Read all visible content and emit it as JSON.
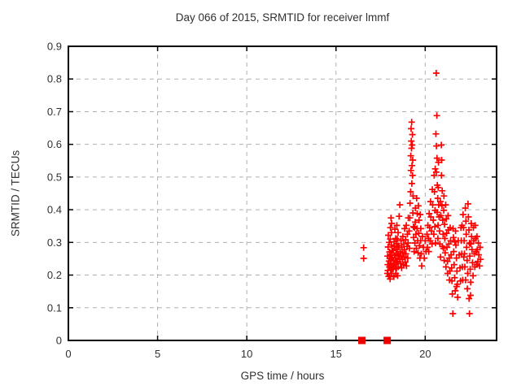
{
  "chart_data": {
    "type": "scatter",
    "title": "Day 066 of 2015, SRMTID for receiver lmmf",
    "xlabel": "GPS time / hours",
    "ylabel": "SRMTID / TECUs",
    "xlim": [
      0,
      24
    ],
    "ylim": [
      0,
      0.9
    ],
    "x_ticks": [
      0,
      5,
      10,
      15,
      20
    ],
    "x_tick_labels": [
      "0",
      "5",
      "10",
      "15",
      "20"
    ],
    "y_ticks": [
      0,
      0.1,
      0.2,
      0.3,
      0.4,
      0.5,
      0.6,
      0.7,
      0.8,
      0.9
    ],
    "y_tick_labels": [
      "0",
      "0.1",
      "0.2",
      "0.3",
      "0.4",
      "0.5",
      "0.6",
      "0.7",
      "0.8",
      "0.9"
    ],
    "grid": true,
    "legend": "none",
    "colors": {
      "marker": "#ff0000",
      "square_marker": "#ee0000",
      "grid": "#b0b0b0",
      "axis": "#000000",
      "text": "#303030",
      "background": "#ffffff"
    },
    "series": [
      {
        "name": "srmtid-values",
        "marker": "plus",
        "color": "#ff0000",
        "points": [
          [
            16.55,
            0.284
          ],
          [
            16.55,
            0.251
          ],
          [
            17.88,
            0.205
          ],
          [
            17.9,
            0.232
          ],
          [
            17.89,
            0.258
          ],
          [
            17.92,
            0.286
          ],
          [
            17.91,
            0.214
          ],
          [
            17.95,
            0.196
          ],
          [
            17.97,
            0.243
          ],
          [
            17.99,
            0.225
          ],
          [
            18.0,
            0.271
          ],
          [
            18.02,
            0.198
          ],
          [
            18.01,
            0.252
          ],
          [
            18.04,
            0.31
          ],
          [
            18.03,
            0.188
          ],
          [
            18.06,
            0.236
          ],
          [
            18.08,
            0.262
          ],
          [
            18.07,
            0.215
          ],
          [
            18.1,
            0.292
          ],
          [
            18.09,
            0.244
          ],
          [
            18.12,
            0.205
          ],
          [
            18.11,
            0.33
          ],
          [
            18.14,
            0.275
          ],
          [
            18.13,
            0.228
          ],
          [
            18.15,
            0.252
          ],
          [
            18.05,
            0.345
          ],
          [
            17.93,
            0.322
          ],
          [
            18.08,
            0.375
          ],
          [
            18.12,
            0.358
          ],
          [
            17.98,
            0.3
          ],
          [
            18.2,
            0.218
          ],
          [
            18.22,
            0.246
          ],
          [
            18.21,
            0.275
          ],
          [
            18.25,
            0.302
          ],
          [
            18.24,
            0.195
          ],
          [
            18.27,
            0.232
          ],
          [
            18.29,
            0.26
          ],
          [
            18.28,
            0.288
          ],
          [
            18.31,
            0.225
          ],
          [
            18.3,
            0.34
          ],
          [
            18.33,
            0.252
          ],
          [
            18.35,
            0.205
          ],
          [
            18.34,
            0.312
          ],
          [
            18.37,
            0.278
          ],
          [
            18.36,
            0.238
          ],
          [
            18.4,
            0.296
          ],
          [
            18.39,
            0.22
          ],
          [
            18.42,
            0.265
          ],
          [
            18.41,
            0.352
          ],
          [
            18.44,
            0.242
          ],
          [
            18.43,
            0.31
          ],
          [
            18.46,
            0.285
          ],
          [
            18.45,
            0.198
          ],
          [
            18.48,
            0.33
          ],
          [
            18.5,
            0.262
          ],
          [
            18.49,
            0.225
          ],
          [
            18.52,
            0.29
          ],
          [
            18.55,
            0.248
          ],
          [
            18.54,
            0.38
          ],
          [
            18.58,
            0.415
          ],
          [
            18.6,
            0.272
          ],
          [
            18.62,
            0.235
          ],
          [
            18.65,
            0.305
          ],
          [
            18.64,
            0.258
          ],
          [
            18.68,
            0.222
          ],
          [
            18.7,
            0.285
          ],
          [
            18.72,
            0.248
          ],
          [
            18.75,
            0.318
          ],
          [
            18.74,
            0.268
          ],
          [
            18.78,
            0.232
          ],
          [
            18.8,
            0.295
          ],
          [
            18.82,
            0.255
          ],
          [
            18.85,
            0.342
          ],
          [
            18.84,
            0.278
          ],
          [
            18.88,
            0.24
          ],
          [
            18.9,
            0.308
          ],
          [
            18.92,
            0.265
          ],
          [
            18.95,
            0.228
          ],
          [
            18.94,
            0.352
          ],
          [
            18.98,
            0.288
          ],
          [
            19.0,
            0.325
          ],
          [
            19.02,
            0.252
          ],
          [
            19.05,
            0.375
          ],
          [
            19.04,
            0.298
          ],
          [
            19.1,
            0.335
          ],
          [
            19.12,
            0.282
          ],
          [
            19.15,
            0.42
          ],
          [
            19.14,
            0.375
          ],
          [
            19.18,
            0.455
          ],
          [
            19.2,
            0.52
          ],
          [
            19.19,
            0.565
          ],
          [
            19.22,
            0.61
          ],
          [
            19.21,
            0.648
          ],
          [
            19.24,
            0.668
          ],
          [
            19.23,
            0.588
          ],
          [
            19.26,
            0.535
          ],
          [
            19.25,
            0.48
          ],
          [
            19.28,
            0.63
          ],
          [
            19.27,
            0.598
          ],
          [
            19.3,
            0.552
          ],
          [
            19.29,
            0.505
          ],
          [
            19.32,
            0.442
          ],
          [
            19.31,
            0.39
          ],
          [
            19.34,
            0.348
          ],
          [
            19.35,
            0.315
          ],
          [
            19.38,
            0.272
          ],
          [
            19.4,
            0.345
          ],
          [
            19.42,
            0.298
          ],
          [
            19.45,
            0.405
          ],
          [
            19.44,
            0.362
          ],
          [
            19.48,
            0.325
          ],
          [
            19.5,
            0.282
          ],
          [
            19.52,
            0.435
          ],
          [
            19.55,
            0.388
          ],
          [
            19.54,
            0.342
          ],
          [
            19.58,
            0.305
          ],
          [
            19.6,
            0.268
          ],
          [
            19.62,
            0.412
          ],
          [
            19.65,
            0.368
          ],
          [
            19.64,
            0.328
          ],
          [
            19.68,
            0.29
          ],
          [
            19.7,
            0.252
          ],
          [
            19.72,
            0.385
          ],
          [
            19.75,
            0.342
          ],
          [
            19.74,
            0.305
          ],
          [
            19.78,
            0.265
          ],
          [
            19.8,
            0.228
          ],
          [
            19.85,
            0.318
          ],
          [
            19.9,
            0.285
          ],
          [
            19.95,
            0.252
          ],
          [
            20.0,
            0.305
          ],
          [
            20.05,
            0.272
          ],
          [
            20.1,
            0.325
          ],
          [
            20.12,
            0.285
          ],
          [
            20.15,
            0.352
          ],
          [
            20.18,
            0.312
          ],
          [
            20.2,
            0.272
          ],
          [
            20.22,
            0.388
          ],
          [
            20.25,
            0.345
          ],
          [
            20.28,
            0.305
          ],
          [
            20.3,
            0.425
          ],
          [
            20.32,
            0.378
          ],
          [
            20.35,
            0.335
          ],
          [
            20.38,
            0.295
          ],
          [
            20.4,
            0.462
          ],
          [
            20.42,
            0.415
          ],
          [
            20.45,
            0.368
          ],
          [
            20.48,
            0.325
          ],
          [
            20.5,
            0.505
          ],
          [
            20.52,
            0.455
          ],
          [
            20.55,
            0.398
          ],
          [
            20.54,
            0.348
          ],
          [
            20.58,
            0.298
          ],
          [
            20.56,
            0.525
          ],
          [
            20.62,
            0.818
          ],
          [
            20.65,
            0.688
          ],
          [
            20.6,
            0.632
          ],
          [
            20.63,
            0.595
          ],
          [
            20.66,
            0.558
          ],
          [
            20.62,
            0.515
          ],
          [
            20.68,
            0.475
          ],
          [
            20.7,
            0.435
          ],
          [
            20.67,
            0.392
          ],
          [
            20.72,
            0.352
          ],
          [
            20.71,
            0.312
          ],
          [
            20.74,
            0.545
          ],
          [
            20.73,
            0.468
          ],
          [
            20.75,
            0.415
          ],
          [
            20.78,
            0.378
          ],
          [
            20.8,
            0.335
          ],
          [
            20.82,
            0.295
          ],
          [
            20.85,
            0.425
          ],
          [
            20.88,
            0.382
          ],
          [
            20.9,
            0.598
          ],
          [
            20.92,
            0.552
          ],
          [
            20.91,
            0.505
          ],
          [
            20.95,
            0.458
          ],
          [
            20.94,
            0.412
          ],
          [
            20.98,
            0.368
          ],
          [
            21.0,
            0.325
          ],
          [
            21.02,
            0.282
          ],
          [
            21.05,
            0.442
          ],
          [
            21.04,
            0.398
          ],
          [
            21.08,
            0.355
          ],
          [
            21.1,
            0.312
          ],
          [
            21.12,
            0.268
          ],
          [
            21.15,
            0.415
          ],
          [
            21.18,
            0.372
          ],
          [
            21.2,
            0.328
          ],
          [
            21.22,
            0.285
          ],
          [
            21.25,
            0.242
          ],
          [
            21.28,
            0.382
          ],
          [
            21.3,
            0.338
          ],
          [
            21.32,
            0.295
          ],
          [
            20.86,
            0.255
          ],
          [
            20.96,
            0.288
          ],
          [
            21.06,
            0.245
          ],
          [
            21.16,
            0.225
          ],
          [
            21.26,
            0.205
          ],
          [
            21.35,
            0.252
          ],
          [
            21.38,
            0.212
          ],
          [
            21.4,
            0.345
          ],
          [
            21.42,
            0.305
          ],
          [
            21.45,
            0.262
          ],
          [
            21.48,
            0.222
          ],
          [
            21.5,
            0.182
          ],
          [
            21.52,
            0.142
          ],
          [
            21.55,
            0.082
          ],
          [
            21.58,
            0.315
          ],
          [
            21.6,
            0.272
          ],
          [
            21.62,
            0.232
          ],
          [
            21.65,
            0.192
          ],
          [
            21.68,
            0.152
          ],
          [
            21.7,
            0.335
          ],
          [
            21.72,
            0.292
          ],
          [
            21.75,
            0.252
          ],
          [
            21.78,
            0.212
          ],
          [
            21.8,
            0.172
          ],
          [
            21.82,
            0.132
          ],
          [
            21.85,
            0.305
          ],
          [
            21.9,
            0.262
          ],
          [
            21.36,
            0.185
          ],
          [
            21.56,
            0.342
          ],
          [
            21.66,
            0.302
          ],
          [
            21.76,
            0.165
          ],
          [
            21.95,
            0.222
          ],
          [
            21.98,
            0.182
          ],
          [
            22.0,
            0.345
          ],
          [
            22.02,
            0.305
          ],
          [
            22.05,
            0.265
          ],
          [
            22.08,
            0.225
          ],
          [
            22.1,
            0.185
          ],
          [
            22.12,
            0.385
          ],
          [
            22.15,
            0.345
          ],
          [
            22.18,
            0.305
          ],
          [
            22.2,
            0.265
          ],
          [
            22.22,
            0.225
          ],
          [
            22.25,
            0.405
          ],
          [
            22.28,
            0.365
          ],
          [
            22.3,
            0.325
          ],
          [
            22.32,
            0.285
          ],
          [
            22.35,
            0.245
          ],
          [
            22.38,
            0.205
          ],
          [
            22.4,
            0.418
          ],
          [
            22.42,
            0.378
          ],
          [
            22.45,
            0.338
          ],
          [
            22.48,
            0.298
          ],
          [
            22.5,
            0.258
          ],
          [
            22.52,
            0.218
          ],
          [
            22.55,
            0.178
          ],
          [
            22.54,
            0.138
          ],
          [
            22.48,
            0.082
          ],
          [
            22.58,
            0.358
          ],
          [
            22.6,
            0.318
          ],
          [
            22.62,
            0.278
          ],
          [
            22.06,
            0.352
          ],
          [
            22.16,
            0.255
          ],
          [
            22.26,
            0.185
          ],
          [
            22.36,
            0.158
          ],
          [
            22.46,
            0.128
          ],
          [
            22.56,
            0.295
          ],
          [
            22.65,
            0.238
          ],
          [
            22.68,
            0.198
          ],
          [
            22.7,
            0.345
          ],
          [
            22.72,
            0.305
          ],
          [
            22.75,
            0.265
          ],
          [
            22.78,
            0.225
          ],
          [
            22.8,
            0.352
          ],
          [
            22.82,
            0.312
          ],
          [
            22.85,
            0.272
          ],
          [
            22.88,
            0.232
          ],
          [
            22.9,
            0.318
          ],
          [
            22.92,
            0.278
          ],
          [
            22.95,
            0.242
          ],
          [
            22.98,
            0.298
          ],
          [
            23.0,
            0.262
          ],
          [
            23.05,
            0.228
          ],
          [
            23.08,
            0.285
          ],
          [
            23.1,
            0.248
          ]
        ]
      },
      {
        "name": "baseline-markers",
        "marker": "filled-square",
        "color": "#ee0000",
        "points": [
          [
            16.45,
            0
          ],
          [
            17.87,
            0
          ]
        ]
      }
    ]
  }
}
